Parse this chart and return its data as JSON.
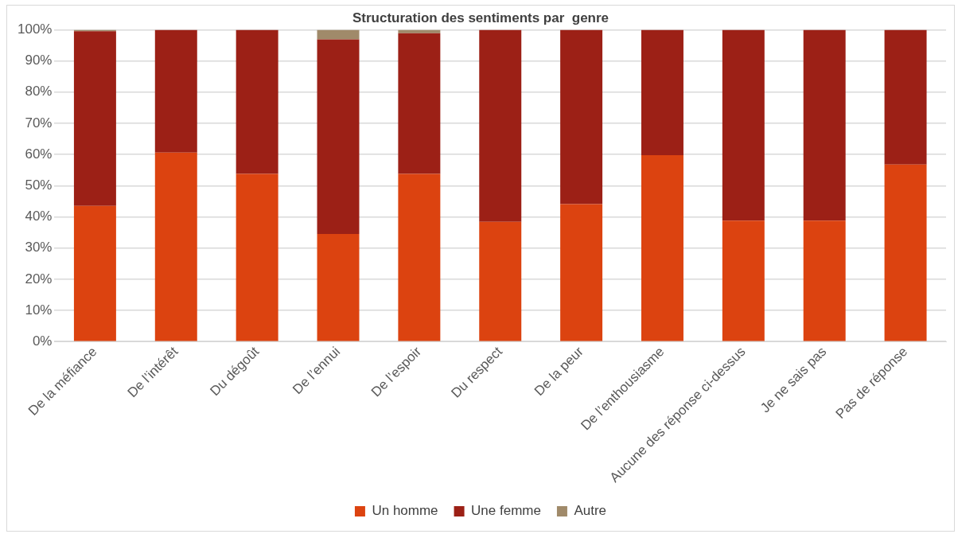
{
  "chart_data": {
    "type": "bar",
    "title": "Structuration des sentiments par  genre",
    "stacked": true,
    "categories": [
      "De la méfiance",
      "De l’intérêt",
      "Du dégoût",
      "De l’ennui",
      "De l’espoir",
      "Du respect",
      "De la peur",
      "De l’enthousiasme",
      "Aucune des réponse ci-dessus",
      "Je ne sais pas",
      "Pas de réponse"
    ],
    "series": [
      {
        "name": "Un homme",
        "color": "#dc4310",
        "values": [
          43.5,
          60.6,
          53.8,
          34.5,
          53.8,
          38.4,
          44.1,
          59.8,
          38.8,
          38.8,
          56.8
        ]
      },
      {
        "name": "Une femme",
        "color": "#9c2016",
        "values": [
          56,
          39.4,
          46.2,
          62.4,
          45.1,
          61.6,
          55.9,
          40.2,
          61.2,
          61.2,
          43.2
        ]
      },
      {
        "name": "Autre",
        "color": "#a08a6a",
        "values": [
          0.5,
          0,
          0,
          3.1,
          1.1,
          0,
          0,
          0,
          0,
          0,
          0
        ]
      }
    ],
    "ylim": [
      0,
      100
    ],
    "yticks": [
      {
        "value": 0,
        "label": "0%"
      },
      {
        "value": 10,
        "label": "10%"
      },
      {
        "value": 20,
        "label": "20%"
      },
      {
        "value": 30,
        "label": "30%"
      },
      {
        "value": 40,
        "label": "40%"
      },
      {
        "value": 50,
        "label": "50%"
      },
      {
        "value": 60,
        "label": "60%"
      },
      {
        "value": 70,
        "label": "70%"
      },
      {
        "value": 80,
        "label": "80%"
      },
      {
        "value": 90,
        "label": "90%"
      },
      {
        "value": 100,
        "label": "100%"
      }
    ],
    "grid": "y",
    "legend": "bottom"
  }
}
